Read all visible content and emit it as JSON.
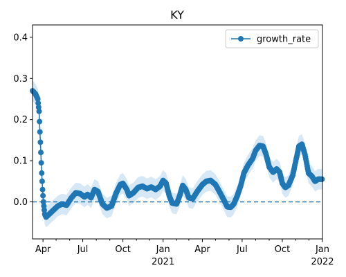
{
  "colors": {
    "series": "#1f77b4",
    "band": "#d6e7f5",
    "axis": "#000000"
  },
  "chart_data": {
    "type": "line",
    "title": "KY",
    "xlabel": "",
    "ylabel": "",
    "x_range": [
      "2020-03-08",
      "2022-01-01"
    ],
    "ylim": [
      -0.09,
      0.43
    ],
    "y_ticks": [
      0.0,
      0.1,
      0.2,
      0.3,
      0.4
    ],
    "y_tick_labels": [
      "0.0",
      "0.1",
      "0.2",
      "0.3",
      "0.4"
    ],
    "x_ticks": [
      {
        "date": "2020-04-01",
        "label": "Apr",
        "year": ""
      },
      {
        "date": "2020-07-01",
        "label": "Jul",
        "year": ""
      },
      {
        "date": "2020-10-01",
        "label": "Oct",
        "year": ""
      },
      {
        "date": "2021-01-01",
        "label": "Jan",
        "year": "2021"
      },
      {
        "date": "2021-04-01",
        "label": "Apr",
        "year": ""
      },
      {
        "date": "2021-07-01",
        "label": "Jul",
        "year": ""
      },
      {
        "date": "2021-10-01",
        "label": "Oct",
        "year": ""
      },
      {
        "date": "2022-01-01",
        "label": "Jan",
        "year": "2022"
      }
    ],
    "minor_x_ticks": [
      "2020-05-01",
      "2020-06-01",
      "2020-08-01",
      "2020-09-01",
      "2020-11-01",
      "2020-12-01",
      "2021-02-01",
      "2021-03-01",
      "2021-05-01",
      "2021-06-01",
      "2021-08-01",
      "2021-09-01",
      "2021-11-01",
      "2021-12-01"
    ],
    "reference_line": {
      "y": 0.0,
      "style": "dashed"
    },
    "legend": {
      "position": "top-right",
      "entries": [
        "growth_rate"
      ]
    },
    "grid": false,
    "series": [
      {
        "name": "growth_rate",
        "marker": "circle",
        "band_halfwidth": 0.025,
        "points": [
          [
            "2020-03-08",
            0.27
          ],
          [
            "2020-03-15",
            0.262
          ],
          [
            "2020-03-20",
            0.25
          ],
          [
            "2020-03-23",
            0.22
          ],
          [
            "2020-03-25",
            0.17
          ],
          [
            "2020-03-27",
            0.12
          ],
          [
            "2020-03-29",
            0.07
          ],
          [
            "2020-03-31",
            0.03
          ],
          [
            "2020-04-02",
            0.0
          ],
          [
            "2020-04-05",
            -0.03
          ],
          [
            "2020-04-08",
            -0.037
          ],
          [
            "2020-04-15",
            -0.03
          ],
          [
            "2020-04-25",
            -0.02
          ],
          [
            "2020-05-05",
            -0.01
          ],
          [
            "2020-05-15",
            -0.005
          ],
          [
            "2020-05-25",
            -0.008
          ],
          [
            "2020-06-05",
            0.01
          ],
          [
            "2020-06-15",
            0.022
          ],
          [
            "2020-06-25",
            0.02
          ],
          [
            "2020-07-05",
            0.012
          ],
          [
            "2020-07-12",
            0.018
          ],
          [
            "2020-07-20",
            0.01
          ],
          [
            "2020-07-28",
            0.03
          ],
          [
            "2020-08-05",
            0.025
          ],
          [
            "2020-08-15",
            -0.005
          ],
          [
            "2020-08-25",
            -0.015
          ],
          [
            "2020-09-05",
            -0.01
          ],
          [
            "2020-09-15",
            0.02
          ],
          [
            "2020-09-25",
            0.042
          ],
          [
            "2020-10-01",
            0.045
          ],
          [
            "2020-10-10",
            0.03
          ],
          [
            "2020-10-15",
            0.015
          ],
          [
            "2020-10-25",
            0.022
          ],
          [
            "2020-11-05",
            0.035
          ],
          [
            "2020-11-15",
            0.038
          ],
          [
            "2020-11-25",
            0.032
          ],
          [
            "2020-12-05",
            0.036
          ],
          [
            "2020-12-15",
            0.03
          ],
          [
            "2020-12-25",
            0.038
          ],
          [
            "2021-01-01",
            0.052
          ],
          [
            "2021-01-08",
            0.045
          ],
          [
            "2021-01-15",
            0.015
          ],
          [
            "2021-01-22",
            -0.003
          ],
          [
            "2021-02-01",
            -0.005
          ],
          [
            "2021-02-08",
            0.015
          ],
          [
            "2021-02-15",
            0.04
          ],
          [
            "2021-02-22",
            0.03
          ],
          [
            "2021-03-01",
            0.01
          ],
          [
            "2021-03-10",
            0.008
          ],
          [
            "2021-03-20",
            0.025
          ],
          [
            "2021-04-01",
            0.042
          ],
          [
            "2021-04-10",
            0.05
          ],
          [
            "2021-04-20",
            0.052
          ],
          [
            "2021-05-01",
            0.042
          ],
          [
            "2021-05-10",
            0.025
          ],
          [
            "2021-05-20",
            0.005
          ],
          [
            "2021-05-28",
            -0.012
          ],
          [
            "2021-06-05",
            -0.013
          ],
          [
            "2021-06-12",
            -0.005
          ],
          [
            "2021-06-20",
            0.015
          ],
          [
            "2021-06-28",
            0.04
          ],
          [
            "2021-07-05",
            0.07
          ],
          [
            "2021-07-15",
            0.09
          ],
          [
            "2021-07-25",
            0.105
          ],
          [
            "2021-08-01",
            0.125
          ],
          [
            "2021-08-10",
            0.137
          ],
          [
            "2021-08-18",
            0.135
          ],
          [
            "2021-08-25",
            0.115
          ],
          [
            "2021-09-01",
            0.085
          ],
          [
            "2021-09-10",
            0.072
          ],
          [
            "2021-09-18",
            0.08
          ],
          [
            "2021-09-25",
            0.072
          ],
          [
            "2021-10-01",
            0.045
          ],
          [
            "2021-10-08",
            0.035
          ],
          [
            "2021-10-15",
            0.04
          ],
          [
            "2021-10-25",
            0.065
          ],
          [
            "2021-11-01",
            0.1
          ],
          [
            "2021-11-08",
            0.135
          ],
          [
            "2021-11-15",
            0.14
          ],
          [
            "2021-11-22",
            0.115
          ],
          [
            "2021-11-30",
            0.07
          ],
          [
            "2021-12-08",
            0.062
          ],
          [
            "2021-12-15",
            0.05
          ],
          [
            "2021-12-22",
            0.055
          ],
          [
            "2021-12-31",
            0.055
          ]
        ]
      }
    ]
  }
}
